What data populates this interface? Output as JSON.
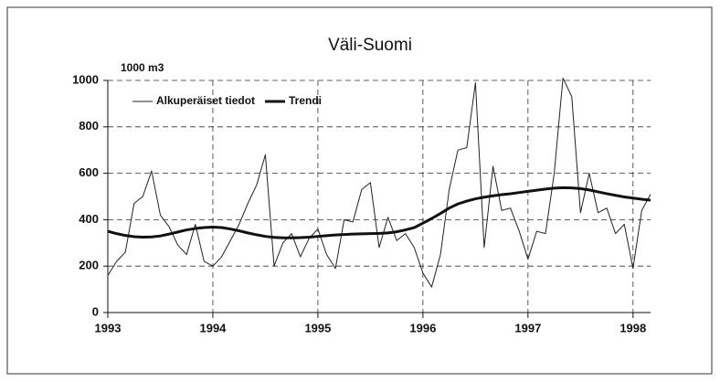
{
  "chart_data": {
    "type": "line",
    "title": "Väli-Suomi",
    "y_label": "1000 m3",
    "x": [
      1993,
      1993.083,
      1993.167,
      1993.25,
      1993.333,
      1993.417,
      1993.5,
      1993.583,
      1993.667,
      1993.75,
      1993.833,
      1993.917,
      1994,
      1994.083,
      1994.167,
      1994.25,
      1994.333,
      1994.417,
      1994.5,
      1994.583,
      1994.667,
      1994.75,
      1994.833,
      1994.917,
      1995,
      1995.083,
      1995.167,
      1995.25,
      1995.333,
      1995.417,
      1995.5,
      1995.583,
      1995.667,
      1995.75,
      1995.833,
      1995.917,
      1996,
      1996.083,
      1996.167,
      1996.25,
      1996.333,
      1996.417,
      1996.5,
      1996.583,
      1996.667,
      1996.75,
      1996.833,
      1996.917,
      1997,
      1997.083,
      1997.167,
      1997.25,
      1997.333,
      1997.417,
      1997.5,
      1997.583,
      1997.667,
      1997.75,
      1997.833,
      1997.917,
      1998,
      1998.083,
      1998.167
    ],
    "series": [
      {
        "name": "Alkuperäiset tiedot",
        "color": "#222222",
        "width": 1,
        "values": [
          160,
          220,
          260,
          470,
          500,
          610,
          420,
          370,
          290,
          250,
          380,
          220,
          200,
          240,
          310,
          380,
          470,
          550,
          680,
          200,
          300,
          340,
          240,
          320,
          360,
          250,
          190,
          400,
          390,
          530,
          560,
          280,
          410,
          310,
          340,
          280,
          170,
          110,
          250,
          530,
          700,
          710,
          990,
          280,
          630,
          440,
          450,
          350,
          230,
          350,
          340,
          600,
          1010,
          930,
          430,
          600,
          430,
          450,
          340,
          380,
          190,
          440,
          510
        ]
      },
      {
        "name": "Trendi",
        "color": "#111111",
        "width": 3,
        "values": [
          350,
          340,
          332,
          327,
          325,
          326,
          330,
          338,
          347,
          356,
          362,
          366,
          368,
          366,
          360,
          352,
          343,
          335,
          328,
          324,
          322,
          322,
          323,
          325,
          328,
          331,
          334,
          336,
          338,
          339,
          340,
          341,
          343,
          348,
          356,
          366,
          385,
          405,
          427,
          450,
          468,
          480,
          490,
          497,
          503,
          508,
          512,
          517,
          522,
          527,
          532,
          536,
          538,
          537,
          534,
          528,
          520,
          512,
          505,
          498,
          493,
          488,
          484
        ]
      }
    ],
    "xlim": [
      1993,
      1998.167
    ],
    "xticks": [
      1993,
      1994,
      1995,
      1996,
      1997,
      1998
    ],
    "ylim": [
      0,
      1000
    ],
    "yticks": [
      0,
      200,
      400,
      600,
      800,
      1000
    ],
    "grid": true
  }
}
